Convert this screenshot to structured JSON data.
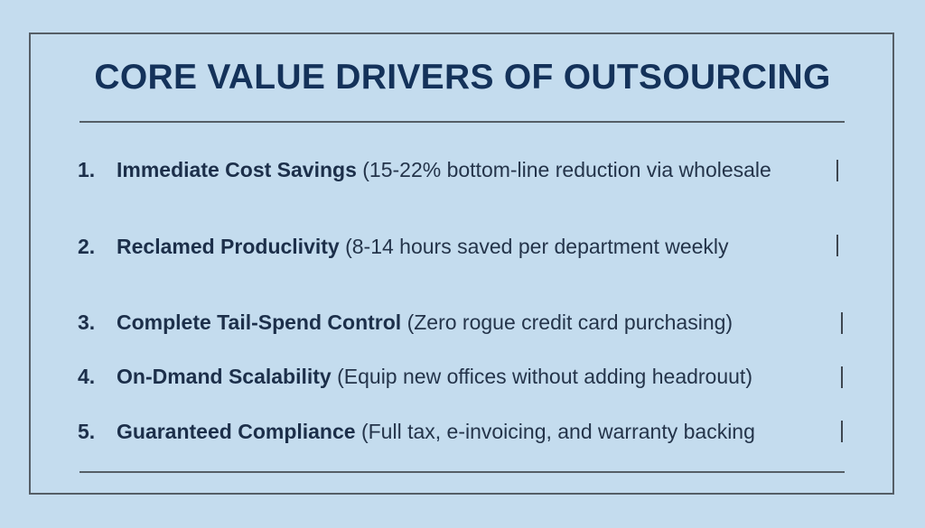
{
  "title": "CORE VALUE DRIVERS OF OUTSOURCING",
  "items": [
    {
      "number": "1.",
      "heading": "Immediate Cost Savings",
      "detail": "(15-22% bottom-line reduction via wholesale"
    },
    {
      "number": "2.",
      "heading": "Reclamed Producl­ivity",
      "detail": "(8-14 hours saved per department weekly"
    },
    {
      "number": "3.",
      "heading": "Complete Tail-Spend Control",
      "detail": "(Zero rogue credit card purchasing)"
    },
    {
      "number": "4.",
      "heading": "On-Dmand Scalability",
      "detail": "(Equip new offices without adding headrouut)"
    },
    {
      "number": "5.",
      "heading": "Guaranteed Compliance",
      "detail": "(Full tax, e-invoicing, and warranty backing"
    }
  ],
  "colors": {
    "background": "#c4dcee",
    "title": "#14325a",
    "text": "#1f2f44",
    "border": "#555e66"
  }
}
